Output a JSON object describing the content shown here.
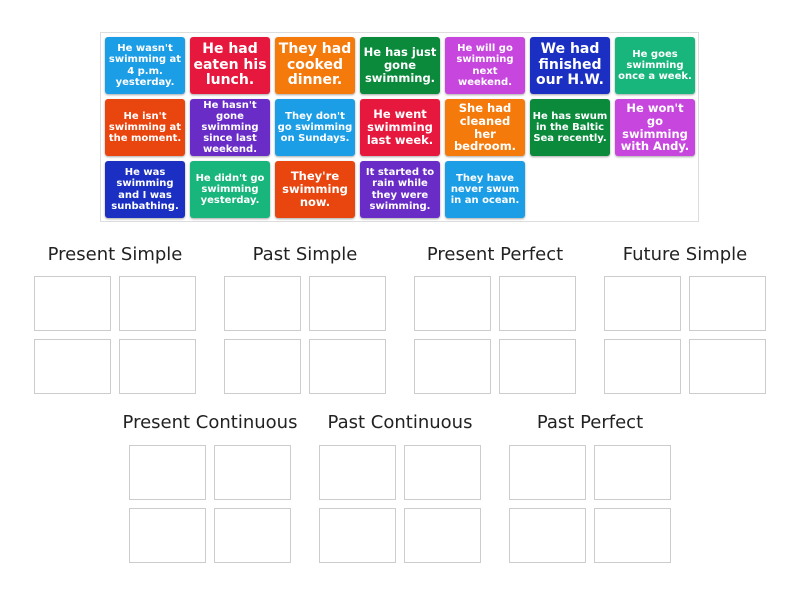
{
  "colors": {
    "blue": "#1c9ee6",
    "red": "#e6183e",
    "orange": "#f57a0c",
    "darkgreen": "#0b8a3c",
    "magenta": "#c646de",
    "navy": "#1b30c2",
    "teal": "#18b67c",
    "redorange": "#e9450f",
    "violet": "#6a2cc6"
  },
  "cards": [
    {
      "text": "He wasn't swimming at 4 p.m. yesterday.",
      "color": "blue",
      "size": "s"
    },
    {
      "text": "He had eaten his lunch.",
      "color": "red",
      "size": "l"
    },
    {
      "text": "They had cooked dinner.",
      "color": "orange",
      "size": "l"
    },
    {
      "text": "He has just gone swimming.",
      "color": "darkgreen",
      "size": "m"
    },
    {
      "text": "He will go swimming next weekend.",
      "color": "magenta",
      "size": "s"
    },
    {
      "text": "We had finished our H.W.",
      "color": "navy",
      "size": "l"
    },
    {
      "text": "He goes swimming once a week.",
      "color": "teal",
      "size": "s"
    },
    {
      "text": "He isn't swimming at the moment.",
      "color": "redorange",
      "size": "s"
    },
    {
      "text": "He hasn't gone swimming since last weekend.",
      "color": "violet",
      "size": "s"
    },
    {
      "text": "They don't go swimming on Sundays.",
      "color": "blue",
      "size": "s"
    },
    {
      "text": "He went swimming last week.",
      "color": "red",
      "size": "m"
    },
    {
      "text": "She had cleaned her bedroom.",
      "color": "orange",
      "size": "m"
    },
    {
      "text": "He has swum in the Baltic Sea recently.",
      "color": "darkgreen",
      "size": "s"
    },
    {
      "text": "He won't go swimming with Andy.",
      "color": "magenta",
      "size": "m"
    },
    {
      "text": "He was swimming and I was sunbathing.",
      "color": "navy",
      "size": "s"
    },
    {
      "text": "He didn't go swimming yesterday.",
      "color": "teal",
      "size": "s"
    },
    {
      "text": "They're swimming now.",
      "color": "redorange",
      "size": "m"
    },
    {
      "text": "It started to rain while they were swimming.",
      "color": "violet",
      "size": "s"
    },
    {
      "text": "They have never swum in an ocean.",
      "color": "blue",
      "size": "s"
    }
  ],
  "groups": [
    {
      "label": "Present Simple"
    },
    {
      "label": "Past Simple"
    },
    {
      "label": "Present Perfect"
    },
    {
      "label": "Future Simple"
    },
    {
      "label": "Present Continuous"
    },
    {
      "label": "Past Continuous"
    },
    {
      "label": "Past Perfect"
    }
  ]
}
